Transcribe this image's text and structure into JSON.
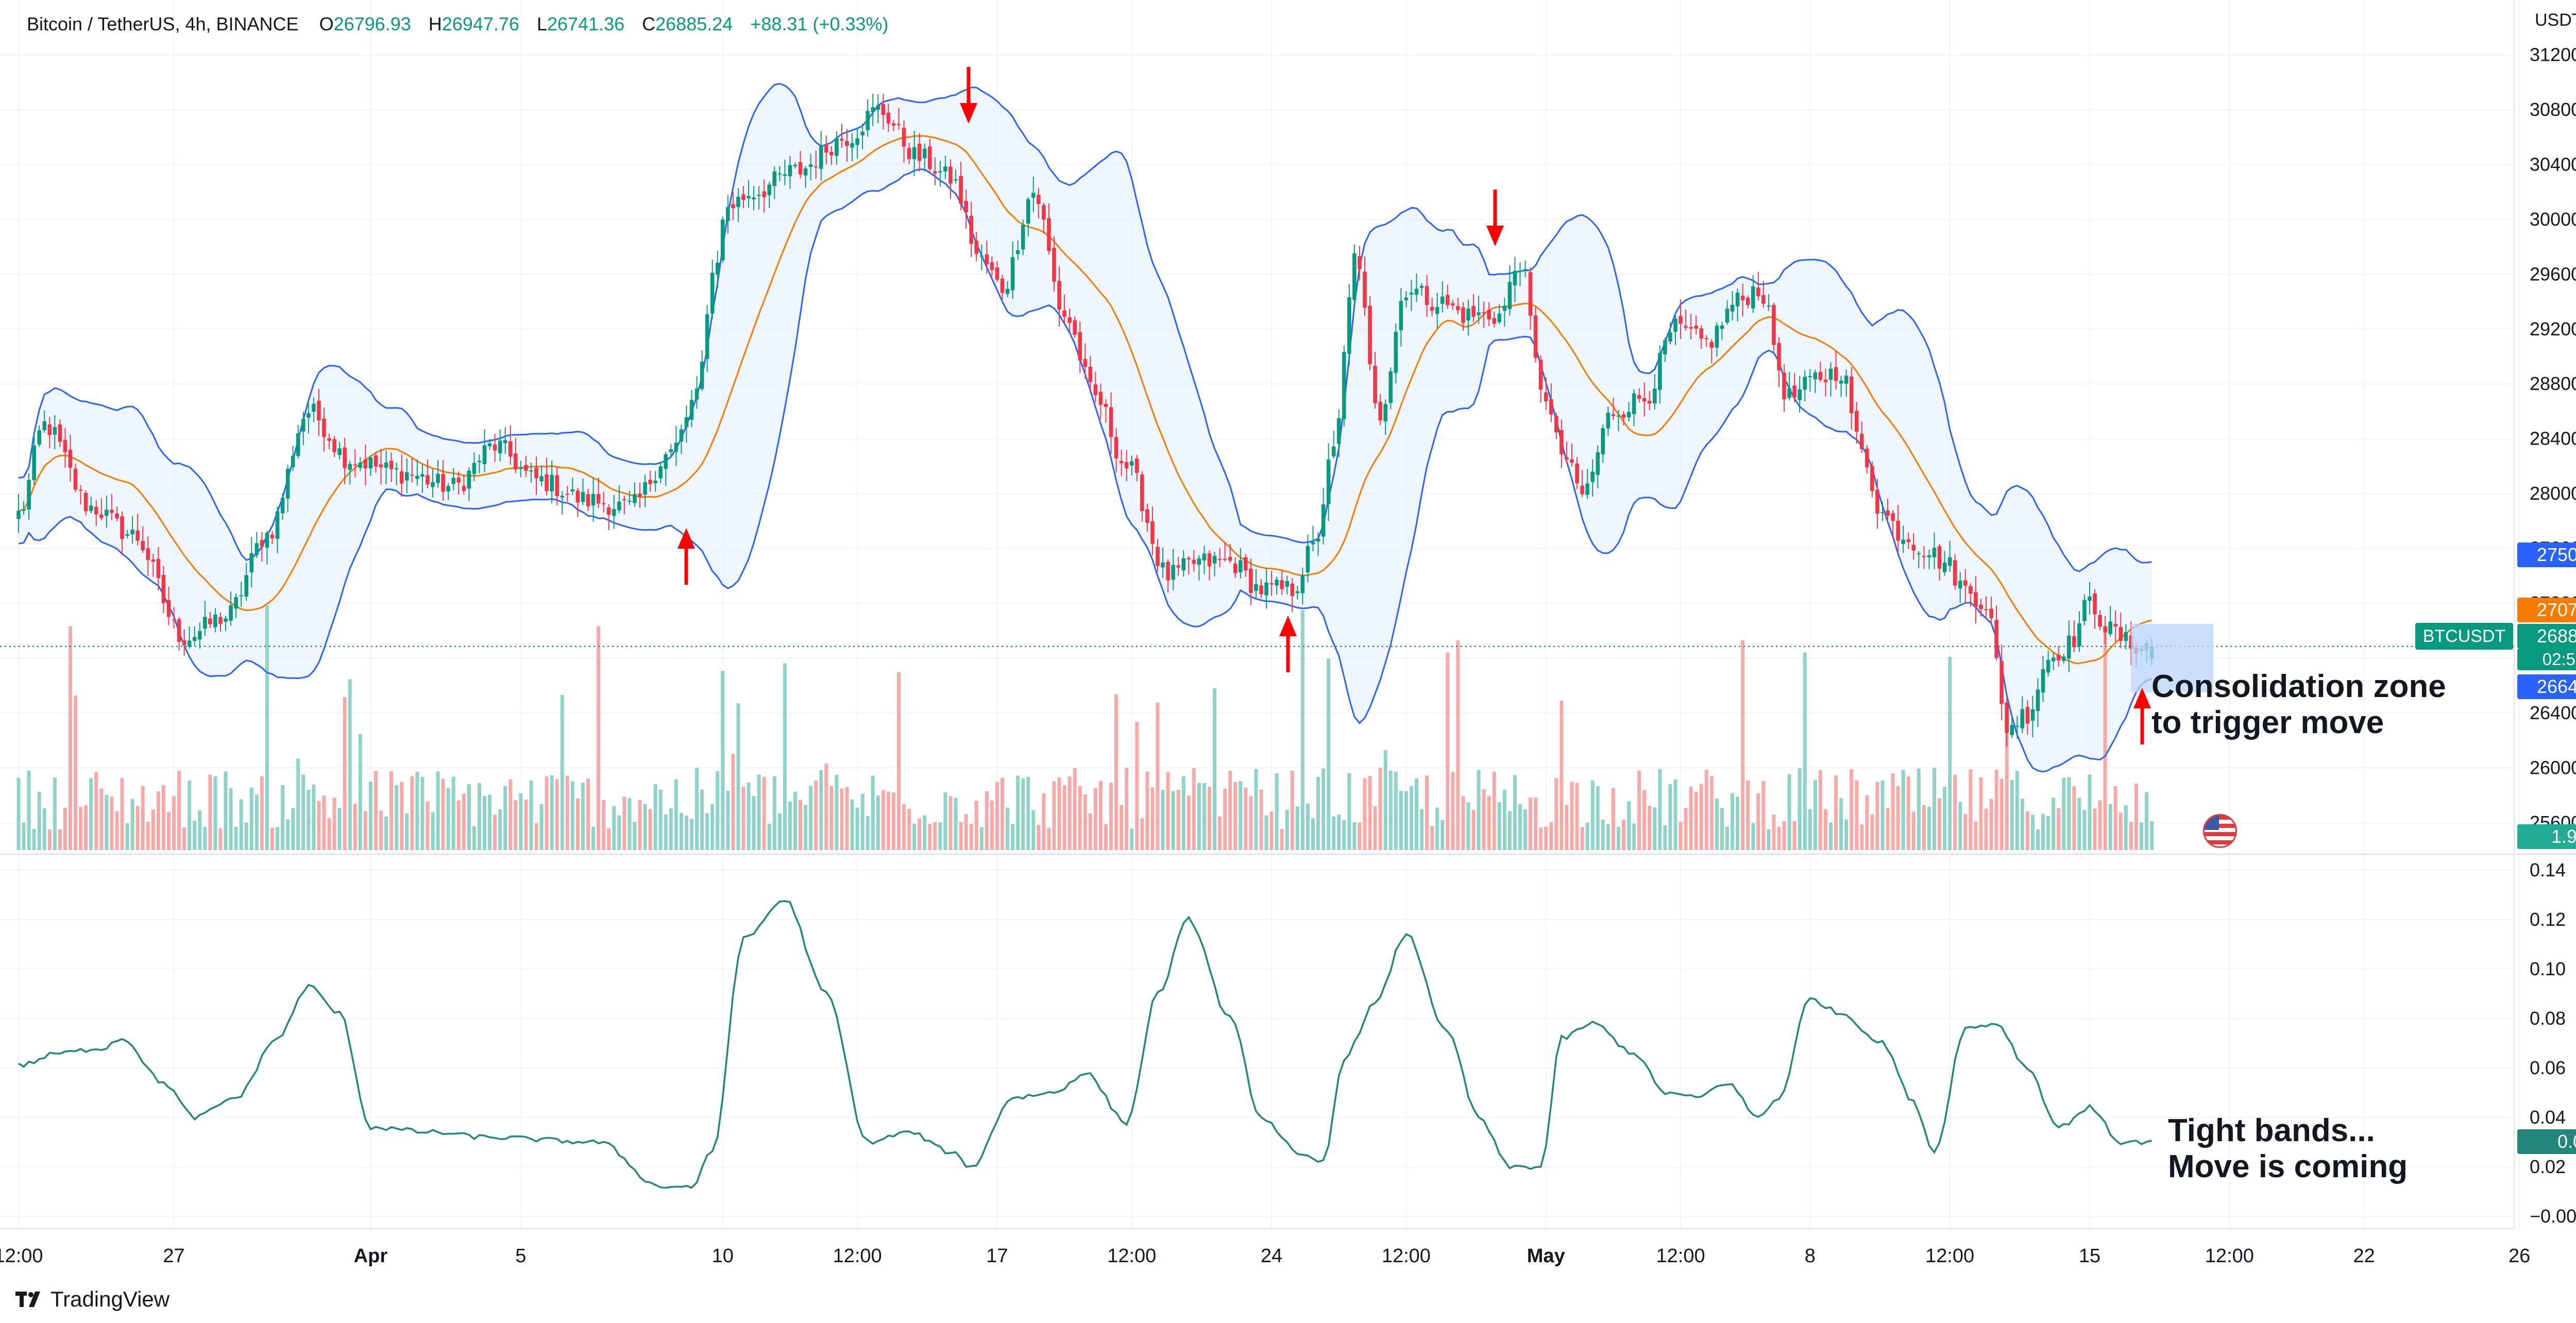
{
  "header": {
    "symbol": "Bitcoin / TetherUS, 4h, BINANCE",
    "o_label": "O",
    "o_value": "26796.93",
    "h_label": "H",
    "h_value": "26947.76",
    "l_label": "L",
    "l_value": "26741.36",
    "c_label": "C",
    "c_value": "26885.24",
    "change": "+88.31 (+0.33%)"
  },
  "price_axis": {
    "unit": "USDT",
    "ticks": [
      "31200.00",
      "30800.00",
      "30400.00",
      "30000.00",
      "29600.00",
      "29200.00",
      "28800.00",
      "28400.00",
      "28000.00",
      "27600.00",
      "27200.00",
      "26800.00",
      "26400.00",
      "26000.00",
      "25600.00"
    ]
  },
  "badges": {
    "upper_band": "27502.16",
    "basis": "27075.18",
    "last_price": "26885.24",
    "countdown": "02:56:18",
    "lower_band": "26648.21",
    "symbol_tag": "BTCUSDT",
    "volume": "1.95K",
    "indicator": "0.03"
  },
  "indicator_axis": {
    "ticks": [
      "0.14",
      "0.12",
      "0.10",
      "0.08",
      "0.06",
      "0.04",
      "0.02",
      "−0.00"
    ]
  },
  "time_axis": {
    "labels": [
      "12:00",
      "27",
      "Apr",
      "5",
      "10",
      "12:00",
      "17",
      "12:00",
      "24",
      "12:00",
      "May",
      "12:00",
      "8",
      "12:00",
      "15",
      "12:00",
      "22",
      "26"
    ]
  },
  "annotations": {
    "consolidation_1": "Consolidation zone",
    "consolidation_2": "to trigger move",
    "tight_1": "Tight bands...",
    "tight_2": "Move is coming"
  },
  "brand": {
    "name": "TradingView"
  },
  "colors": {
    "up": "#089981",
    "down": "#f23645",
    "basis": "#f57c00",
    "bands": "#2962ff",
    "band_fill": "#eaf2fc",
    "bbw_line": "#22867a",
    "arrow": "#ff0000",
    "volume_up": "#8fd3c8",
    "volume_down": "#f7a9a7"
  },
  "chart_data": [
    {
      "type": "candlestick",
      "title": "",
      "ylim": [
        25400,
        31450
      ],
      "x_start": 0,
      "x_step": 1,
      "anchors_close": [
        [
          0,
          27850
        ],
        [
          5,
          28500
        ],
        [
          14,
          27900
        ],
        [
          22,
          27700
        ],
        [
          32,
          26950
        ],
        [
          40,
          27100
        ],
        [
          48,
          27700
        ],
        [
          56,
          28600
        ],
        [
          64,
          28250
        ],
        [
          74,
          28150
        ],
        [
          84,
          28050
        ],
        [
          92,
          28350
        ],
        [
          100,
          28100
        ],
        [
          110,
          27950
        ],
        [
          118,
          27900
        ],
        [
          126,
          28300
        ],
        [
          131,
          28700
        ],
        [
          134,
          29600
        ],
        [
          137,
          30100
        ],
        [
          142,
          30200
        ],
        [
          150,
          30350
        ],
        [
          160,
          30600
        ],
        [
          166,
          30800
        ],
        [
          174,
          30450
        ],
        [
          180,
          30300
        ],
        [
          186,
          29700
        ],
        [
          190,
          29500
        ],
        [
          196,
          30200
        ],
        [
          202,
          29300
        ],
        [
          208,
          28700
        ],
        [
          214,
          28200
        ],
        [
          222,
          27400
        ],
        [
          228,
          27500
        ],
        [
          234,
          27500
        ],
        [
          240,
          27300
        ],
        [
          246,
          27300
        ],
        [
          250,
          27600
        ],
        [
          254,
          28300
        ],
        [
          258,
          29700
        ],
        [
          263,
          28600
        ],
        [
          268,
          29500
        ],
        [
          274,
          29400
        ],
        [
          280,
          29300
        ],
        [
          286,
          29300
        ],
        [
          290,
          29700
        ],
        [
          294,
          28800
        ],
        [
          298,
          28300
        ],
        [
          302,
          28000
        ],
        [
          308,
          28600
        ],
        [
          314,
          28700
        ],
        [
          320,
          29200
        ],
        [
          326,
          29100
        ],
        [
          332,
          29400
        ],
        [
          336,
          29500
        ],
        [
          342,
          28700
        ],
        [
          348,
          28850
        ],
        [
          352,
          28900
        ],
        [
          356,
          28300
        ],
        [
          360,
          27850
        ],
        [
          364,
          27700
        ],
        [
          368,
          27600
        ],
        [
          372,
          27500
        ],
        [
          376,
          27300
        ],
        [
          380,
          27200
        ],
        [
          384,
          26300
        ],
        [
          388,
          26400
        ],
        [
          392,
          26800
        ],
        [
          396,
          26900
        ],
        [
          400,
          27200
        ],
        [
          404,
          27000
        ],
        [
          408,
          26900
        ],
        [
          412,
          26885
        ]
      ],
      "candle_count": 413,
      "last": {
        "o": 26796.93,
        "h": 26947.76,
        "l": 26741.36,
        "c": 26885.24
      },
      "bollinger": {
        "upper_last": 27502.16,
        "basis_last": 27075.18,
        "lower_last": 26648.21
      },
      "price_line": 26885.24
    },
    {
      "type": "bar",
      "title": "Volume",
      "last_value": "1.95K"
    },
    {
      "type": "line",
      "title": "",
      "ylim": [
        -0.005,
        0.145
      ],
      "anchors": [
        [
          0,
          0.061
        ],
        [
          8,
          0.066
        ],
        [
          16,
          0.068
        ],
        [
          20,
          0.072
        ],
        [
          28,
          0.054
        ],
        [
          34,
          0.04
        ],
        [
          42,
          0.048
        ],
        [
          50,
          0.072
        ],
        [
          56,
          0.093
        ],
        [
          62,
          0.082
        ],
        [
          68,
          0.036
        ],
        [
          80,
          0.034
        ],
        [
          90,
          0.032
        ],
        [
          112,
          0.03
        ],
        [
          124,
          0.012
        ],
        [
          130,
          0.012
        ],
        [
          134,
          0.026
        ],
        [
          140,
          0.112
        ],
        [
          148,
          0.128
        ],
        [
          156,
          0.09
        ],
        [
          164,
          0.03
        ],
        [
          172,
          0.034
        ],
        [
          180,
          0.026
        ],
        [
          184,
          0.02
        ],
        [
          192,
          0.048
        ],
        [
          200,
          0.05
        ],
        [
          206,
          0.058
        ],
        [
          214,
          0.038
        ],
        [
          220,
          0.09
        ],
        [
          226,
          0.12
        ],
        [
          234,
          0.08
        ],
        [
          240,
          0.04
        ],
        [
          248,
          0.024
        ],
        [
          252,
          0.022
        ],
        [
          256,
          0.064
        ],
        [
          262,
          0.086
        ],
        [
          268,
          0.114
        ],
        [
          276,
          0.074
        ],
        [
          282,
          0.04
        ],
        [
          288,
          0.02
        ],
        [
          294,
          0.02
        ],
        [
          298,
          0.072
        ],
        [
          304,
          0.078
        ],
        [
          312,
          0.066
        ],
        [
          318,
          0.05
        ],
        [
          324,
          0.048
        ],
        [
          330,
          0.054
        ],
        [
          336,
          0.04
        ],
        [
          340,
          0.048
        ],
        [
          346,
          0.088
        ],
        [
          352,
          0.082
        ],
        [
          360,
          0.07
        ],
        [
          366,
          0.046
        ],
        [
          370,
          0.026
        ],
        [
          376,
          0.076
        ],
        [
          382,
          0.078
        ],
        [
          388,
          0.06
        ],
        [
          394,
          0.036
        ],
        [
          400,
          0.044
        ],
        [
          406,
          0.03
        ],
        [
          412,
          0.03
        ]
      ]
    }
  ]
}
